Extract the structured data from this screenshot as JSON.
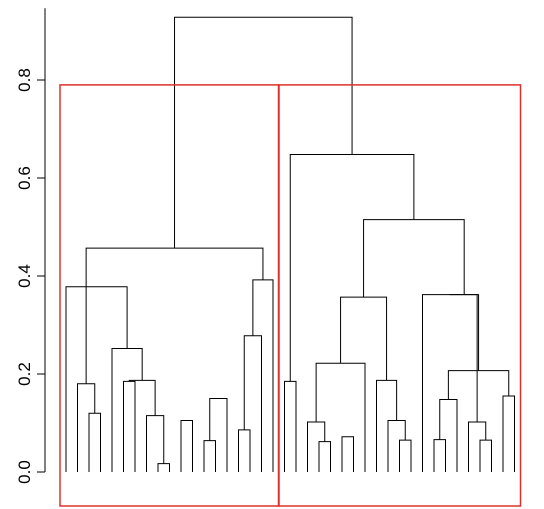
{
  "chart_data": {
    "type": "dendrogram",
    "title": "",
    "xlabel": "",
    "ylabel": "",
    "ylim": [
      0,
      0.93
    ],
    "yticks": [
      "0.0",
      "0.2",
      "0.4",
      "0.6",
      "0.8"
    ],
    "ytick_values": [
      0,
      0.2,
      0.4,
      0.6,
      0.8
    ],
    "leaf_count": 40,
    "cluster_box_color": "#e0302a",
    "line_color": "#000000",
    "cluster_boxes": [
      {
        "from_leaf": 1,
        "to_leaf": 19,
        "top_height": 0.79
      },
      {
        "from_leaf": 20,
        "to_leaf": 40,
        "top_height": 0.79
      }
    ],
    "merges": [
      {
        "left": 9,
        "right": 10,
        "height": 0.017
      },
      {
        "left": 23,
        "right": 24,
        "height": 0.062
      },
      {
        "left": 13,
        "right": 14,
        "height": 0.064
      },
      {
        "left": 37,
        "right": 38,
        "height": 0.065
      },
      {
        "left": 30,
        "right": 31,
        "height": 0.065
      },
      {
        "left": 33,
        "right": 34,
        "height": 0.066
      },
      {
        "left": 25,
        "right": 26,
        "height": 0.072
      },
      {
        "left": 16,
        "right": 17,
        "height": 0.086
      },
      {
        "left": 36,
        "right": -4,
        "height": 0.102
      },
      {
        "left": 29,
        "right": -5,
        "height": 0.105
      },
      {
        "left": 11,
        "right": 12,
        "height": 0.105
      },
      {
        "left": 22,
        "right": -2,
        "height": 0.102
      },
      {
        "left": 8,
        "right": -1,
        "height": 0.115
      },
      {
        "left": 3,
        "right": 4,
        "height": 0.12
      },
      {
        "left": 15,
        "right": -3,
        "height": 0.15
      },
      {
        "left": 35,
        "right": -6,
        "height": 0.148
      },
      {
        "left": 39,
        "right": 40,
        "height": 0.155
      },
      {
        "left": 2,
        "right": -14,
        "height": 0.18
      },
      {
        "left": 20,
        "right": 21,
        "height": 0.185
      },
      {
        "left": 6,
        "right": 7,
        "height": 0.185
      },
      {
        "left": -16,
        "right": -17,
        "height": 0.207
      },
      {
        "left": -12,
        "right": 27,
        "height": 0.222
      },
      {
        "left": 28,
        "right": -10,
        "height": 0.187
      },
      {
        "left": -20,
        "right": -13,
        "height": 0.187
      },
      {
        "left": 5,
        "right": -24,
        "height": 0.252
      },
      {
        "left": -8,
        "right": 18,
        "height": 0.278
      },
      {
        "left": 19,
        "right": -26,
        "height": 0.392
      },
      {
        "left": 1,
        "right": -25,
        "height": 0.378
      },
      {
        "left": -27,
        "right": -18,
        "height": 0.457
      },
      {
        "left": 32,
        "right": -9,
        "height": 0.362
      },
      {
        "left": -22,
        "right": -23,
        "height": 0.357
      },
      {
        "left": -30,
        "right": -21,
        "height": 0.362
      },
      {
        "left": -31,
        "right": -32,
        "height": 0.515
      },
      {
        "left": -19,
        "right": -33,
        "height": 0.648
      },
      {
        "left": -29,
        "right": -34,
        "height": 0.928
      }
    ]
  }
}
